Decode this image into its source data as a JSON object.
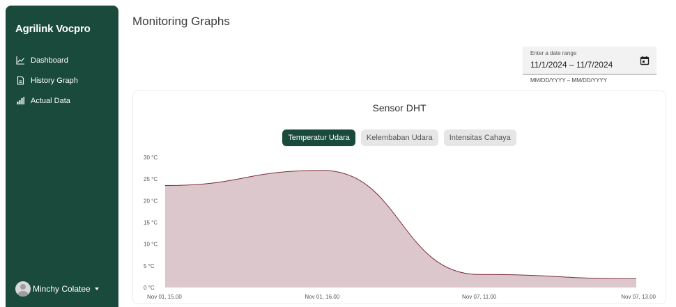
{
  "sidebar": {
    "brand": "Agrilink Vocpro",
    "items": [
      {
        "label": "Dashboard",
        "icon": "line-chart-icon"
      },
      {
        "label": "History Graph",
        "icon": "document-icon"
      },
      {
        "label": "Actual Data",
        "icon": "bar-chart-icon"
      }
    ],
    "user": {
      "name": "Minchy Colatee"
    }
  },
  "main": {
    "title": "Monitoring Graphs",
    "date_range": {
      "label": "Enter a date range",
      "value": "11/1/2024 – 11/7/2024",
      "hint": "MM/DD/YYYY – MM/DD/YYYY"
    }
  },
  "card": {
    "title": "Sensor DHT",
    "tabs": [
      {
        "label": "Temperatur Udara",
        "active": true
      },
      {
        "label": "Kelembaban Udara",
        "active": false
      },
      {
        "label": "Intensitas Cahaya",
        "active": false
      }
    ]
  },
  "colors": {
    "sidebar": "#1a4a3c",
    "accent": "#1a4a3c",
    "area_fill": "#dcc8cc",
    "area_line": "#7a2a3a"
  },
  "chart_data": {
    "type": "area",
    "x": [
      "Nov 01, 15.00",
      "Nov 01, 16.00",
      "Nov 07, 11.00",
      "Nov 07, 13.00"
    ],
    "series": [
      {
        "values": [
          23.5,
          27,
          3,
          2
        ]
      }
    ],
    "ylim": [
      0,
      30
    ],
    "yticks": [
      "30 °C",
      "25 °C",
      "20 °C",
      "15 °C",
      "10 °C",
      "5 °C",
      "0 °C"
    ],
    "grid": false
  }
}
